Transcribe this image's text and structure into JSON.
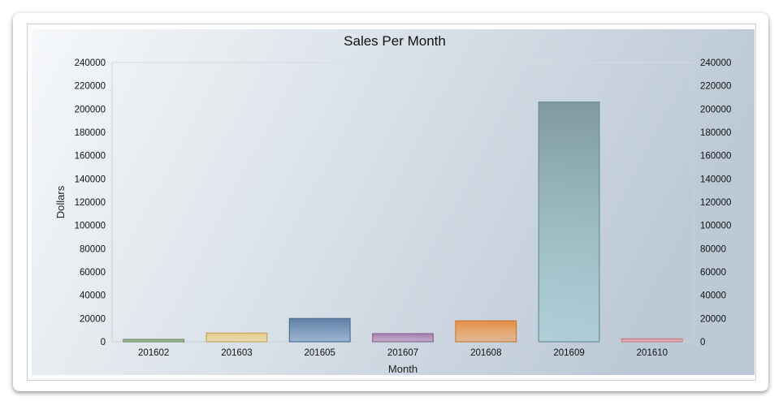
{
  "chart_data": {
    "type": "bar",
    "title": "Sales Per Month",
    "xlabel": "Month",
    "ylabel": "Dollars",
    "categories": [
      "201602",
      "201603",
      "201605",
      "201607",
      "201608",
      "201609",
      "201610"
    ],
    "values": [
      2000,
      7500,
      20000,
      7000,
      18000,
      206000,
      2500
    ],
    "ylim": [
      0,
      240000
    ],
    "yticks": [
      "0",
      "20000",
      "40000",
      "60000",
      "80000",
      "100000",
      "120000",
      "140000",
      "160000",
      "180000",
      "200000",
      "220000",
      "240000"
    ],
    "secondary_yaxis": true,
    "grid": false,
    "legend": "none",
    "colors": [
      "#8fb37f",
      "#f0d58a",
      "#6f93bf",
      "#b58cbd",
      "#f4a25c",
      "#9fcdd4",
      "#f0a9ae"
    ],
    "outline_colors": [
      "#6f8f63",
      "#c7a55a",
      "#4d6f96",
      "#8e6a94",
      "#c97b38",
      "#6d8e96",
      "#c98085"
    ],
    "top_colors": [
      "#9aa98c",
      "#e6c98a",
      "#5f7fa5",
      "#a47cab",
      "#e58e45",
      "#7f999f",
      "#e29aa0"
    ]
  }
}
